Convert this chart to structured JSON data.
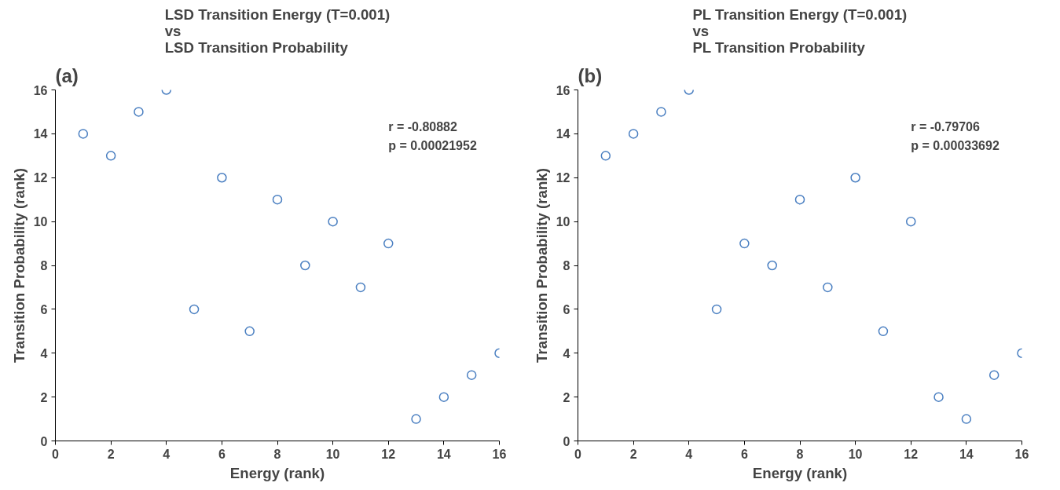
{
  "chart_data": [
    {
      "type": "scatter",
      "title": "LSD Transition Energy (T=0.001)\nvs\nLSD Transition Probability",
      "xlabel": "Energy (rank)",
      "ylabel": "Transition Probability (rank)",
      "annotations": [
        "(a)",
        "r = -0.80882",
        "p = 0.00021952"
      ],
      "x": [
        1,
        2,
        3,
        4,
        5,
        6,
        7,
        8,
        9,
        10,
        11,
        12,
        13,
        14,
        15,
        16
      ],
      "series": [
        {
          "color": "#4a7fc1",
          "values": [
            14,
            13,
            15,
            16,
            6,
            12,
            5,
            11,
            8,
            10,
            7,
            9,
            1,
            2,
            3,
            4
          ]
        }
      ],
      "xlim": [
        0,
        16
      ],
      "ylim": [
        0,
        16
      ],
      "xticks": [
        0,
        2,
        4,
        6,
        8,
        10,
        12,
        14,
        16
      ],
      "yticks": [
        0,
        2,
        4,
        6,
        8,
        10,
        12,
        14,
        16
      ],
      "grid": false,
      "marker": "circle"
    },
    {
      "type": "scatter",
      "title": "PL Transition Energy (T=0.001)\nvs\nPL Transition Probability",
      "xlabel": "Energy (rank)",
      "ylabel": "Transition Probability (rank)",
      "annotations": [
        "(b)",
        "r = -0.79706",
        "p = 0.00033692"
      ],
      "x": [
        1,
        2,
        3,
        4,
        5,
        6,
        7,
        8,
        9,
        10,
        11,
        12,
        13,
        14,
        15,
        16
      ],
      "series": [
        {
          "color": "#4a7fc1",
          "values": [
            13,
            14,
            15,
            16,
            6,
            9,
            8,
            11,
            7,
            12,
            5,
            10,
            2,
            1,
            3,
            4
          ]
        }
      ],
      "xlim": [
        0,
        16
      ],
      "ylim": [
        0,
        16
      ],
      "xticks": [
        0,
        2,
        4,
        6,
        8,
        10,
        12,
        14,
        16
      ],
      "yticks": [
        0,
        2,
        4,
        6,
        8,
        10,
        12,
        14,
        16
      ],
      "grid": false,
      "marker": "circle"
    }
  ]
}
